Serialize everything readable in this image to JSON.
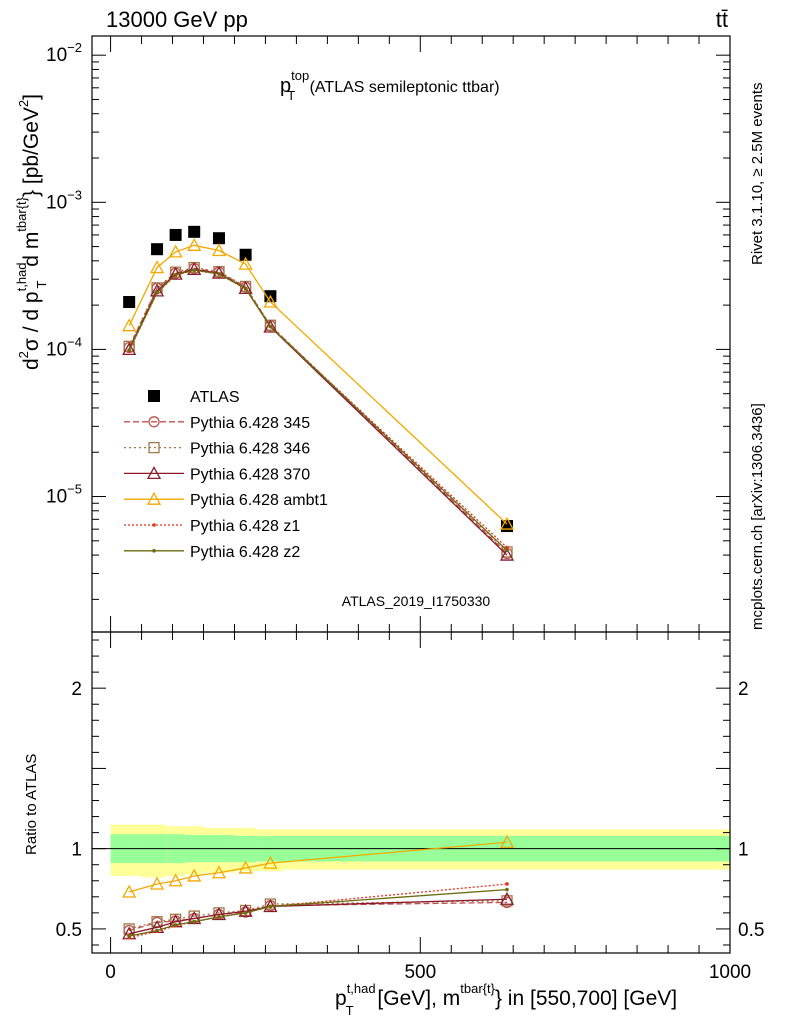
{
  "header": {
    "energy_label": "13000 GeV pp",
    "process_label": "tt̄",
    "title_main": "p",
    "title_sup": "top",
    "title_sub": "T",
    "title_rest": " (ATLAS semileptonic ttbar)"
  },
  "side_labels": {
    "rivet": "Rivet 3.1.10, ≥ 2.5M events",
    "mcplots": "mcplots.cern.ch [arXiv:1306.3436]"
  },
  "watermark": "ATLAS_2019_I1750330",
  "y_axis_label": {
    "p1": "d",
    "p1_sup": "2",
    "p2": "σ / d p",
    "p2_sup": "t,had",
    "p2_sub": "T",
    "p3": " d m",
    "p3_sup": "tbar{t}",
    "p4": "} [pb/GeV",
    "p4_sup": "2",
    "p5": "]"
  },
  "ratio_y_label": "Ratio to ATLAS",
  "x_axis_label": {
    "p1": "p",
    "p1_sup": "t,had",
    "p1_sub": "T",
    "p2": " [GeV], m",
    "p2_sup": "tbar{t}",
    "p3": "} in [550,700] [GeV]"
  },
  "colors": {
    "atlas": "#000000",
    "p345": "#c0504d",
    "p346": "#a0784a",
    "p370": "#8b1a2b",
    "ambt1": "#f2a900",
    "z1": "#e8321e",
    "z2": "#6b6b10",
    "band_inner": "#99ff99",
    "band_outer": "#ffff99"
  },
  "chart_data": {
    "type": "line",
    "x_range": [
      -30,
      1000
    ],
    "main_y_scale": "log",
    "main_y_range": [
      1.2e-06,
      0.0135
    ],
    "main_y_ticks": [
      {
        "value": 1e-05,
        "label_base": "10",
        "label_exp": "−5"
      },
      {
        "value": 0.0001,
        "label_base": "10",
        "label_exp": "−4"
      },
      {
        "value": 0.001,
        "label_base": "10",
        "label_exp": "−3"
      },
      {
        "value": 0.01,
        "label_base": "10",
        "label_exp": "−2"
      }
    ],
    "ratio_y_range": [
      0.35,
      2.35
    ],
    "ratio_y_ticks": [
      {
        "value": 0.5,
        "label": "0.5"
      },
      {
        "value": 1,
        "label": "1"
      },
      {
        "value": 2,
        "label": "2"
      }
    ],
    "x_ticks": [
      {
        "value": 0,
        "label": "0"
      },
      {
        "value": 500,
        "label": "500"
      },
      {
        "value": 1000,
        "label": "1000"
      }
    ],
    "x": [
      30,
      75,
      105,
      135,
      175,
      218,
      258,
      640
    ],
    "series": [
      {
        "name": "ATLAS",
        "key": "atlas",
        "style": "data",
        "values": [
          0.00021,
          0.00048,
          0.0006,
          0.00063,
          0.00057,
          0.00044,
          0.00023,
          6.3e-06
        ]
      },
      {
        "name": "Pythia 6.428 345",
        "key": "p345",
        "marker": "circle",
        "dash": "6,3",
        "values": [
          0.000103,
          0.00026,
          0.00033,
          0.000355,
          0.000335,
          0.000265,
          0.000145,
          4.1e-06
        ],
        "ratio": [
          0.49,
          0.54,
          0.55,
          0.565,
          0.59,
          0.605,
          0.645,
          0.665
        ]
      },
      {
        "name": "Pythia 6.428 346",
        "key": "p346",
        "marker": "square",
        "dash": "2,3",
        "values": [
          0.000105,
          0.000262,
          0.000335,
          0.00036,
          0.000338,
          0.000268,
          0.000146,
          4.2e-06
        ],
        "ratio": [
          0.5,
          0.545,
          0.56,
          0.58,
          0.6,
          0.615,
          0.655,
          0.675
        ]
      },
      {
        "name": "Pythia 6.428 370",
        "key": "p370",
        "marker": "triangle",
        "dash": "",
        "values": [
          0.0001,
          0.00025,
          0.000325,
          0.00035,
          0.00033,
          0.00026,
          0.000142,
          4e-06
        ],
        "ratio": [
          0.47,
          0.51,
          0.545,
          0.565,
          0.59,
          0.61,
          0.64,
          0.685
        ]
      },
      {
        "name": "Pythia 6.428 ambt1",
        "key": "ambt1",
        "marker": "triangle",
        "dash": "",
        "values": [
          0.000145,
          0.00036,
          0.00046,
          0.00051,
          0.00047,
          0.00038,
          0.00021,
          6.5e-06
        ],
        "ratio": [
          0.73,
          0.78,
          0.8,
          0.83,
          0.85,
          0.88,
          0.91,
          1.04
        ]
      },
      {
        "name": "Pythia 6.428 z1",
        "key": "z1",
        "marker": "dot",
        "dash": "2,2",
        "values": [
          9.8e-05,
          0.000242,
          0.00032,
          0.000345,
          0.000325,
          0.000258,
          0.000143,
          4.5e-06
        ],
        "ratio": [
          0.445,
          0.485,
          0.52,
          0.545,
          0.575,
          0.6,
          0.64,
          0.78
        ]
      },
      {
        "name": "Pythia 6.428 z2",
        "key": "z2",
        "marker": "dot",
        "dash": "",
        "values": [
          9.9e-05,
          0.000244,
          0.000322,
          0.000346,
          0.000326,
          0.000259,
          0.000143,
          4.3e-06
        ],
        "ratio": [
          0.455,
          0.49,
          0.525,
          0.545,
          0.575,
          0.6,
          0.64,
          0.745
        ]
      }
    ],
    "uncertainty_bands": {
      "bin_edges": [
        0,
        50,
        90,
        120,
        150,
        200,
        235,
        280,
        1000
      ],
      "inner_low": [
        0.91,
        0.91,
        0.91,
        0.915,
        0.915,
        0.915,
        0.92,
        0.92
      ],
      "inner_high": [
        1.09,
        1.09,
        1.09,
        1.085,
        1.085,
        1.08,
        1.08,
        1.08
      ],
      "outer_low": [
        0.83,
        0.82,
        0.83,
        0.84,
        0.85,
        0.86,
        0.86,
        0.87
      ],
      "outer_high": [
        1.15,
        1.15,
        1.14,
        1.14,
        1.13,
        1.13,
        1.12,
        1.12
      ]
    }
  }
}
